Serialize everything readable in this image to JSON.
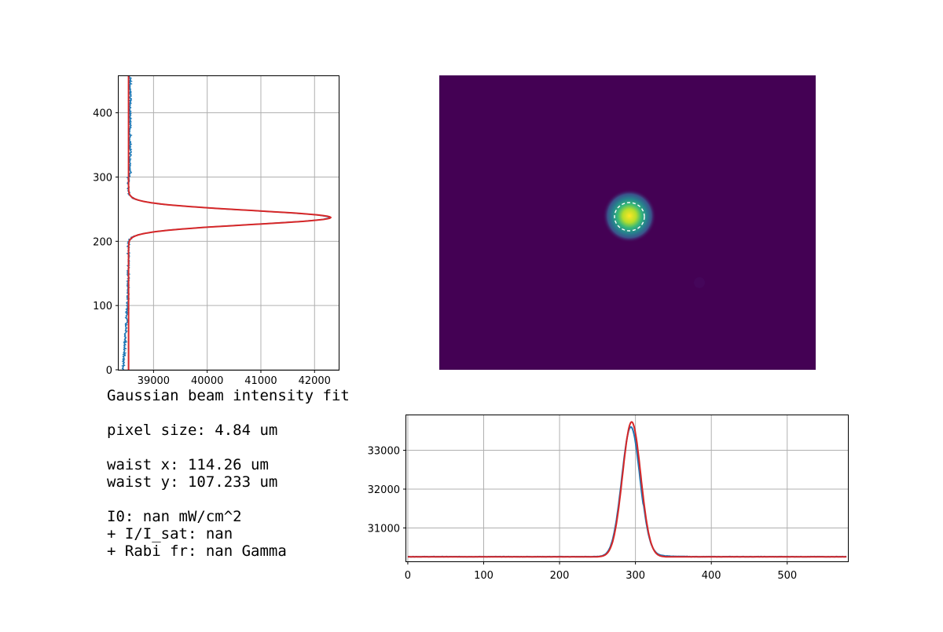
{
  "colors": {
    "data_line": "#1f77b4",
    "fit_line": "#d62728",
    "image_background": "#440154",
    "ellipse": "#ffffff",
    "grid": "#b0b0b0"
  },
  "info_text": {
    "title": "Gaussian beam intensity fit",
    "pixel_size": "pixel size: 4.84 um",
    "waist_x": "waist x: 114.26 um",
    "waist_y": "waist y: 107.233 um",
    "i0": "I0: nan mW/cm^2",
    "i_sat": "+ I/I_sat: nan",
    "rabi": "+ Rabi fr: nan Gamma"
  },
  "chart_data": [
    {
      "id": "vertical-profile",
      "type": "line",
      "orientation": "horizontal-values",
      "grid": true,
      "xlim": [
        38350,
        42450
      ],
      "ylim": [
        0,
        457
      ],
      "xticks": [
        "39000",
        "40000",
        "41000",
        "42000"
      ],
      "xtick_values": [
        39000,
        40000,
        41000,
        42000
      ],
      "yticks": [
        "0",
        "100",
        "200",
        "300",
        "400"
      ],
      "ytick_values": [
        0,
        100,
        200,
        300,
        400
      ],
      "series": [
        {
          "name": "data",
          "color": "#1f77b4",
          "baseline": 38530,
          "peak": 42280,
          "center": 237,
          "sigma": 11,
          "noise": 40
        },
        {
          "name": "fit",
          "color": "#d62728",
          "baseline": 38535,
          "peak": 42300,
          "center": 237,
          "sigma": 11
        }
      ]
    },
    {
      "id": "beam-image",
      "type": "heatmap",
      "colormap": "viridis",
      "x_range": [
        0,
        640
      ],
      "y_range": [
        0,
        480
      ],
      "spot_center": [
        322,
        242
      ],
      "fit_ellipse": {
        "center": [
          322,
          242
        ],
        "rx": 24,
        "ry": 23
      }
    },
    {
      "id": "horizontal-profile",
      "type": "line",
      "grid": true,
      "xlim": [
        -2,
        580
      ],
      "ylim": [
        30140,
        33900
      ],
      "xticks": [
        "0",
        "100",
        "200",
        "300",
        "400",
        "500"
      ],
      "xtick_values": [
        0,
        100,
        200,
        300,
        400,
        500
      ],
      "yticks": [
        "31000",
        "32000",
        "33000"
      ],
      "ytick_values": [
        31000,
        32000,
        33000
      ],
      "series": [
        {
          "name": "data",
          "color": "#1f77b4",
          "baseline": 30260,
          "peak": 33600,
          "center": 294,
          "sigma": 12,
          "noise": 6
        },
        {
          "name": "fit",
          "color": "#d62728",
          "baseline": 30255,
          "peak": 33730,
          "center": 295,
          "sigma": 12
        }
      ]
    }
  ]
}
